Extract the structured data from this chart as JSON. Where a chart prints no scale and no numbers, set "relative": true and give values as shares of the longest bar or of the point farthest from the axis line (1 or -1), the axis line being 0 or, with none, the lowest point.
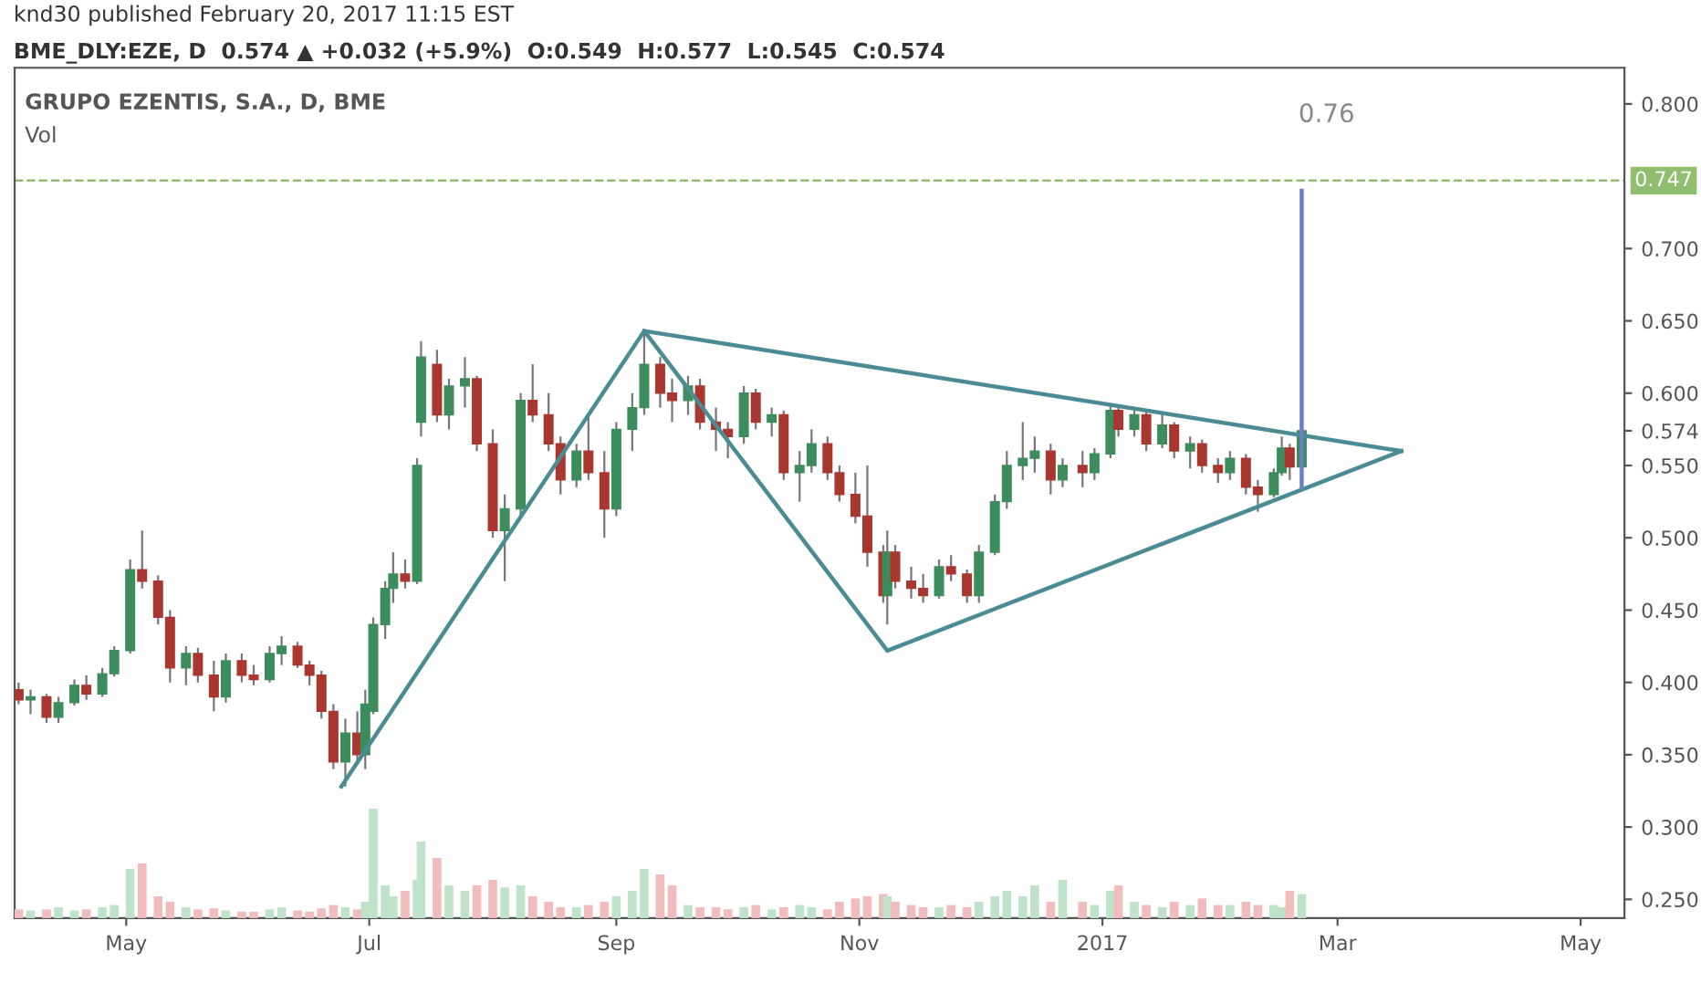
{
  "chart_data": [
    {
      "type": "candlestick",
      "title": "GRUPO EZENTIS, S.A., D, BME",
      "annotations": [
        "knd30 published February 20, 2017 11:15 EST",
        "BME_DLY:EZE, D  0.574 ▲ +0.032 (+5.9%)  O:0.549  H:0.577  L:0.545  C:0.574",
        "0.76"
      ],
      "x": [
        "2016-04-04",
        "2016-04-07",
        "2016-04-11",
        "2016-04-14",
        "2016-04-18",
        "2016-04-21",
        "2016-04-25",
        "2016-04-28",
        "2016-05-02",
        "2016-05-05",
        "2016-05-09",
        "2016-05-12",
        "2016-05-16",
        "2016-05-19",
        "2016-05-23",
        "2016-05-26",
        "2016-05-30",
        "2016-06-02",
        "2016-06-06",
        "2016-06-09",
        "2016-06-13",
        "2016-06-16",
        "2016-06-19",
        "2016-06-22",
        "2016-06-25",
        "2016-06-28",
        "2016-06-30",
        "2016-07-02",
        "2016-07-05",
        "2016-07-07",
        "2016-07-10",
        "2016-07-13",
        "2016-07-14",
        "2016-07-18",
        "2016-07-21",
        "2016-07-25",
        "2016-07-28",
        "2016-08-01",
        "2016-08-04",
        "2016-08-08",
        "2016-08-11",
        "2016-08-15",
        "2016-08-18",
        "2016-08-22",
        "2016-08-25",
        "2016-08-29",
        "2016-09-01",
        "2016-09-05",
        "2016-09-08",
        "2016-09-12",
        "2016-09-15",
        "2016-09-19",
        "2016-09-22",
        "2016-09-26",
        "2016-09-29",
        "2016-10-03",
        "2016-10-06",
        "2016-10-10",
        "2016-10-13",
        "2016-10-17",
        "2016-10-20",
        "2016-10-24",
        "2016-10-27",
        "2016-10-31",
        "2016-11-03",
        "2016-11-07",
        "2016-11-08",
        "2016-11-10",
        "2016-11-14",
        "2016-11-17",
        "2016-11-21",
        "2016-11-24",
        "2016-11-28",
        "2016-12-01",
        "2016-12-05",
        "2016-12-08",
        "2016-12-12",
        "2016-12-15",
        "2016-12-19",
        "2016-12-22",
        "2016-12-27",
        "2016-12-30",
        "2017-01-03",
        "2017-01-05",
        "2017-01-09",
        "2017-01-12",
        "2017-01-16",
        "2017-01-19",
        "2017-01-23",
        "2017-01-26",
        "2017-01-30",
        "2017-02-02",
        "2017-02-06",
        "2017-02-09",
        "2017-02-13",
        "2017-02-15",
        "2017-02-17",
        "2017-02-20"
      ],
      "ohlc": [
        [
          0.395,
          0.4,
          0.385,
          0.388
        ],
        [
          0.388,
          0.395,
          0.378,
          0.39
        ],
        [
          0.39,
          0.392,
          0.372,
          0.376
        ],
        [
          0.376,
          0.39,
          0.372,
          0.386
        ],
        [
          0.386,
          0.402,
          0.384,
          0.398
        ],
        [
          0.398,
          0.405,
          0.388,
          0.392
        ],
        [
          0.392,
          0.41,
          0.39,
          0.406
        ],
        [
          0.406,
          0.425,
          0.404,
          0.422
        ],
        [
          0.422,
          0.485,
          0.42,
          0.478
        ],
        [
          0.478,
          0.505,
          0.465,
          0.47
        ],
        [
          0.47,
          0.474,
          0.44,
          0.445
        ],
        [
          0.445,
          0.45,
          0.4,
          0.41
        ],
        [
          0.41,
          0.425,
          0.398,
          0.42
        ],
        [
          0.42,
          0.424,
          0.4,
          0.405
        ],
        [
          0.405,
          0.415,
          0.38,
          0.39
        ],
        [
          0.39,
          0.42,
          0.386,
          0.415
        ],
        [
          0.415,
          0.42,
          0.4,
          0.405
        ],
        [
          0.405,
          0.412,
          0.398,
          0.402
        ],
        [
          0.402,
          0.425,
          0.4,
          0.42
        ],
        [
          0.42,
          0.432,
          0.412,
          0.425
        ],
        [
          0.425,
          0.428,
          0.41,
          0.412
        ],
        [
          0.412,
          0.415,
          0.398,
          0.405
        ],
        [
          0.405,
          0.408,
          0.375,
          0.38
        ],
        [
          0.38,
          0.385,
          0.34,
          0.345
        ],
        [
          0.345,
          0.375,
          0.328,
          0.365
        ],
        [
          0.365,
          0.38,
          0.345,
          0.35
        ],
        [
          0.35,
          0.395,
          0.34,
          0.385
        ],
        [
          0.38,
          0.445,
          0.378,
          0.44
        ],
        [
          0.44,
          0.47,
          0.43,
          0.465
        ],
        [
          0.465,
          0.49,
          0.455,
          0.475
        ],
        [
          0.475,
          0.485,
          0.465,
          0.47
        ],
        [
          0.47,
          0.555,
          0.468,
          0.55
        ],
        [
          0.58,
          0.636,
          0.57,
          0.625
        ],
        [
          0.62,
          0.63,
          0.58,
          0.585
        ],
        [
          0.585,
          0.61,
          0.575,
          0.605
        ],
        [
          0.605,
          0.625,
          0.59,
          0.61
        ],
        [
          0.61,
          0.612,
          0.56,
          0.565
        ],
        [
          0.565,
          0.575,
          0.5,
          0.505
        ],
        [
          0.505,
          0.53,
          0.47,
          0.52
        ],
        [
          0.52,
          0.6,
          0.515,
          0.595
        ],
        [
          0.595,
          0.62,
          0.58,
          0.585
        ],
        [
          0.585,
          0.6,
          0.56,
          0.565
        ],
        [
          0.565,
          0.57,
          0.53,
          0.54
        ],
        [
          0.54,
          0.565,
          0.535,
          0.56
        ],
        [
          0.56,
          0.585,
          0.54,
          0.545
        ],
        [
          0.545,
          0.56,
          0.5,
          0.52
        ],
        [
          0.52,
          0.58,
          0.515,
          0.575
        ],
        [
          0.575,
          0.6,
          0.56,
          0.59
        ],
        [
          0.59,
          0.643,
          0.585,
          0.62
        ],
        [
          0.62,
          0.625,
          0.59,
          0.6
        ],
        [
          0.6,
          0.61,
          0.58,
          0.595
        ],
        [
          0.595,
          0.612,
          0.585,
          0.605
        ],
        [
          0.605,
          0.61,
          0.575,
          0.58
        ],
        [
          0.58,
          0.59,
          0.56,
          0.575
        ],
        [
          0.575,
          0.58,
          0.555,
          0.57
        ],
        [
          0.57,
          0.605,
          0.565,
          0.6
        ],
        [
          0.6,
          0.603,
          0.575,
          0.58
        ],
        [
          0.58,
          0.59,
          0.57,
          0.585
        ],
        [
          0.585,
          0.588,
          0.54,
          0.545
        ],
        [
          0.545,
          0.56,
          0.525,
          0.55
        ],
        [
          0.55,
          0.575,
          0.545,
          0.565
        ],
        [
          0.565,
          0.57,
          0.54,
          0.545
        ],
        [
          0.545,
          0.55,
          0.525,
          0.53
        ],
        [
          0.53,
          0.545,
          0.51,
          0.515
        ],
        [
          0.515,
          0.55,
          0.48,
          0.49
        ],
        [
          0.49,
          0.495,
          0.455,
          0.46
        ],
        [
          0.46,
          0.505,
          0.44,
          0.49
        ],
        [
          0.49,
          0.495,
          0.465,
          0.47
        ],
        [
          0.47,
          0.48,
          0.458,
          0.465
        ],
        [
          0.465,
          0.475,
          0.455,
          0.46
        ],
        [
          0.46,
          0.485,
          0.458,
          0.48
        ],
        [
          0.48,
          0.488,
          0.47,
          0.475
        ],
        [
          0.475,
          0.478,
          0.455,
          0.46
        ],
        [
          0.46,
          0.495,
          0.455,
          0.49
        ],
        [
          0.49,
          0.53,
          0.488,
          0.525
        ],
        [
          0.525,
          0.56,
          0.52,
          0.55
        ],
        [
          0.55,
          0.58,
          0.54,
          0.555
        ],
        [
          0.555,
          0.57,
          0.545,
          0.56
        ],
        [
          0.56,
          0.565,
          0.53,
          0.54
        ],
        [
          0.54,
          0.555,
          0.535,
          0.55
        ],
        [
          0.55,
          0.56,
          0.535,
          0.545
        ],
        [
          0.545,
          0.562,
          0.54,
          0.558
        ],
        [
          0.558,
          0.592,
          0.555,
          0.588
        ],
        [
          0.588,
          0.592,
          0.57,
          0.575
        ],
        [
          0.575,
          0.59,
          0.57,
          0.585
        ],
        [
          0.585,
          0.588,
          0.56,
          0.565
        ],
        [
          0.565,
          0.585,
          0.562,
          0.578
        ],
        [
          0.578,
          0.58,
          0.555,
          0.56
        ],
        [
          0.56,
          0.57,
          0.548,
          0.565
        ],
        [
          0.565,
          0.568,
          0.545,
          0.55
        ],
        [
          0.55,
          0.555,
          0.538,
          0.545
        ],
        [
          0.545,
          0.56,
          0.54,
          0.555
        ],
        [
          0.555,
          0.558,
          0.53,
          0.535
        ],
        [
          0.535,
          0.54,
          0.518,
          0.53
        ],
        [
          0.53,
          0.548,
          0.528,
          0.545
        ],
        [
          0.545,
          0.57,
          0.543,
          0.562
        ],
        [
          0.562,
          0.565,
          0.54,
          0.549
        ],
        [
          0.549,
          0.577,
          0.545,
          0.574
        ]
      ],
      "colors": [
        "#a9372f",
        "#3d8c5c",
        "#a9372f",
        "#3d8c5c",
        "#3d8c5c",
        "#a9372f",
        "#3d8c5c",
        "#3d8c5c",
        "#3d8c5c",
        "#a9372f",
        "#a9372f",
        "#a9372f",
        "#3d8c5c",
        "#a9372f",
        "#a9372f",
        "#3d8c5c",
        "#a9372f",
        "#a9372f",
        "#3d8c5c",
        "#3d8c5c",
        "#a9372f",
        "#a9372f",
        "#a9372f",
        "#a9372f",
        "#3d8c5c",
        "#a9372f",
        "#3d8c5c",
        "#3d8c5c",
        "#3d8c5c",
        "#3d8c5c",
        "#a9372f",
        "#3d8c5c",
        "#3d8c5c",
        "#a9372f",
        "#3d8c5c",
        "#3d8c5c",
        "#a9372f",
        "#a9372f",
        "#3d8c5c",
        "#3d8c5c",
        "#a9372f",
        "#a9372f",
        "#a9372f",
        "#3d8c5c",
        "#a9372f",
        "#a9372f",
        "#3d8c5c",
        "#3d8c5c",
        "#3d8c5c",
        "#a9372f",
        "#a9372f",
        "#3d8c5c",
        "#a9372f",
        "#a9372f",
        "#a9372f",
        "#3d8c5c",
        "#a9372f",
        "#3d8c5c",
        "#a9372f",
        "#3d8c5c",
        "#3d8c5c",
        "#a9372f",
        "#a9372f",
        "#a9372f",
        "#a9372f",
        "#a9372f",
        "#3d8c5c",
        "#a9372f",
        "#a9372f",
        "#a9372f",
        "#3d8c5c",
        "#a9372f",
        "#a9372f",
        "#3d8c5c",
        "#3d8c5c",
        "#3d8c5c",
        "#3d8c5c",
        "#3d8c5c",
        "#a9372f",
        "#3d8c5c",
        "#a9372f",
        "#3d8c5c",
        "#3d8c5c",
        "#a9372f",
        "#3d8c5c",
        "#a9372f",
        "#3d8c5c",
        "#a9372f",
        "#3d8c5c",
        "#a9372f",
        "#a9372f",
        "#3d8c5c",
        "#a9372f",
        "#a9372f",
        "#3d8c5c",
        "#3d8c5c",
        "#a9372f",
        "#3d8c5c"
      ],
      "series": [
        {
          "type": "line",
          "color": "#4a8b94",
          "x": [
            "2016-06-24",
            "2016-09-08",
            "2016-11-08",
            "2017-03-17"
          ],
          "values": [
            0.328,
            0.643,
            0.422,
            0.56
          ]
        },
        {
          "type": "line",
          "color": "#4a8b94",
          "x": [
            "2016-09-08",
            "2017-03-17"
          ],
          "values": [
            0.643,
            0.56
          ]
        },
        {
          "type": "line",
          "color": "#6b7fc4",
          "x": [
            "2017-02-20",
            "2017-02-20"
          ],
          "values": [
            0.535,
            0.74
          ]
        }
      ],
      "ref_lines": [
        {
          "axis": "y",
          "value": 0.747,
          "label": "0.747",
          "color": "#8fbf6e",
          "line_style": "dashed"
        }
      ],
      "xlim": [
        "2016-04-03",
        "2017-05-12"
      ],
      "xticks": [
        {
          "value": "2016-05-01",
          "label": "May"
        },
        {
          "value": "2016-07-01",
          "label": "Jul"
        },
        {
          "value": "2016-09-01",
          "label": "Sep"
        },
        {
          "value": "2016-11-01",
          "label": "Nov"
        },
        {
          "value": "2017-01-01",
          "label": "2017"
        },
        {
          "value": "2017-03-01",
          "label": "Mar"
        },
        {
          "value": "2017-05-01",
          "label": "May"
        }
      ],
      "ylim": [
        0.237,
        0.825
      ],
      "yticks": [
        {
          "value": 0.25,
          "label": "0.250"
        },
        {
          "value": 0.3,
          "label": "0.300"
        },
        {
          "value": 0.35,
          "label": "0.350"
        },
        {
          "value": 0.4,
          "label": "0.400"
        },
        {
          "value": 0.45,
          "label": "0.450"
        },
        {
          "value": 0.5,
          "label": "0.500"
        },
        {
          "value": 0.55,
          "label": "0.550"
        },
        {
          "value": 0.574,
          "label": "0.574"
        },
        {
          "value": 0.6,
          "label": "0.600"
        },
        {
          "value": 0.65,
          "label": "0.650"
        },
        {
          "value": 0.7,
          "label": "0.700"
        },
        {
          "value": 0.8,
          "label": "0.800"
        }
      ],
      "grid": false,
      "legend": false
    },
    {
      "type": "bar",
      "title": "Vol",
      "relative": true,
      "x": [
        "2016-04-04",
        "2016-04-07",
        "2016-04-11",
        "2016-04-14",
        "2016-04-18",
        "2016-04-21",
        "2016-04-25",
        "2016-04-28",
        "2016-05-02",
        "2016-05-05",
        "2016-05-09",
        "2016-05-12",
        "2016-05-16",
        "2016-05-19",
        "2016-05-23",
        "2016-05-26",
        "2016-05-30",
        "2016-06-02",
        "2016-06-06",
        "2016-06-09",
        "2016-06-13",
        "2016-06-16",
        "2016-06-19",
        "2016-06-22",
        "2016-06-25",
        "2016-06-28",
        "2016-06-30",
        "2016-07-02",
        "2016-07-05",
        "2016-07-07",
        "2016-07-10",
        "2016-07-13",
        "2016-07-14",
        "2016-07-18",
        "2016-07-21",
        "2016-07-25",
        "2016-07-28",
        "2016-08-01",
        "2016-08-04",
        "2016-08-08",
        "2016-08-11",
        "2016-08-15",
        "2016-08-18",
        "2016-08-22",
        "2016-08-25",
        "2016-08-29",
        "2016-09-01",
        "2016-09-05",
        "2016-09-08",
        "2016-09-12",
        "2016-09-15",
        "2016-09-19",
        "2016-09-22",
        "2016-09-26",
        "2016-09-29",
        "2016-10-03",
        "2016-10-06",
        "2016-10-10",
        "2016-10-13",
        "2016-10-17",
        "2016-10-20",
        "2016-10-24",
        "2016-10-27",
        "2016-10-31",
        "2016-11-03",
        "2016-11-07",
        "2016-11-08",
        "2016-11-10",
        "2016-11-14",
        "2016-11-17",
        "2016-11-21",
        "2016-11-24",
        "2016-11-28",
        "2016-12-01",
        "2016-12-05",
        "2016-12-08",
        "2016-12-12",
        "2016-12-15",
        "2016-12-19",
        "2016-12-22",
        "2016-12-27",
        "2016-12-30",
        "2017-01-03",
        "2017-01-05",
        "2017-01-09",
        "2017-01-12",
        "2017-01-16",
        "2017-01-19",
        "2017-01-23",
        "2017-01-26",
        "2017-01-30",
        "2017-02-02",
        "2017-02-06",
        "2017-02-09",
        "2017-02-13",
        "2017-02-15",
        "2017-02-17",
        "2017-02-20"
      ],
      "values": [
        0.08,
        0.07,
        0.08,
        0.1,
        0.07,
        0.08,
        0.1,
        0.12,
        0.45,
        0.5,
        0.2,
        0.15,
        0.1,
        0.08,
        0.09,
        0.07,
        0.06,
        0.06,
        0.08,
        0.1,
        0.07,
        0.06,
        0.09,
        0.12,
        0.1,
        0.08,
        0.15,
        1.0,
        0.3,
        0.2,
        0.25,
        0.35,
        0.7,
        0.55,
        0.3,
        0.25,
        0.3,
        0.35,
        0.28,
        0.3,
        0.2,
        0.15,
        0.1,
        0.1,
        0.12,
        0.15,
        0.2,
        0.25,
        0.45,
        0.4,
        0.3,
        0.12,
        0.1,
        0.1,
        0.08,
        0.1,
        0.12,
        0.08,
        0.1,
        0.12,
        0.1,
        0.08,
        0.15,
        0.18,
        0.2,
        0.22,
        0.2,
        0.15,
        0.12,
        0.1,
        0.1,
        0.12,
        0.1,
        0.15,
        0.2,
        0.25,
        0.2,
        0.3,
        0.15,
        0.35,
        0.15,
        0.12,
        0.25,
        0.3,
        0.15,
        0.12,
        0.1,
        0.15,
        0.12,
        0.18,
        0.12,
        0.12,
        0.15,
        0.12,
        0.12,
        0.1,
        0.25,
        0.22
      ],
      "colors": [
        "#f1bcbc",
        "#bfe3c8",
        "#f1bcbc",
        "#bfe3c8",
        "#bfe3c8",
        "#f1bcbc",
        "#bfe3c8",
        "#bfe3c8",
        "#bfe3c8",
        "#f1bcbc",
        "#f1bcbc",
        "#f1bcbc",
        "#bfe3c8",
        "#f1bcbc",
        "#f1bcbc",
        "#bfe3c8",
        "#f1bcbc",
        "#f1bcbc",
        "#bfe3c8",
        "#bfe3c8",
        "#f1bcbc",
        "#f1bcbc",
        "#f1bcbc",
        "#f1bcbc",
        "#bfe3c8",
        "#f1bcbc",
        "#bfe3c8",
        "#bfe3c8",
        "#bfe3c8",
        "#bfe3c8",
        "#f1bcbc",
        "#bfe3c8",
        "#bfe3c8",
        "#f1bcbc",
        "#bfe3c8",
        "#bfe3c8",
        "#f1bcbc",
        "#f1bcbc",
        "#bfe3c8",
        "#bfe3c8",
        "#f1bcbc",
        "#f1bcbc",
        "#f1bcbc",
        "#bfe3c8",
        "#f1bcbc",
        "#f1bcbc",
        "#bfe3c8",
        "#bfe3c8",
        "#bfe3c8",
        "#f1bcbc",
        "#f1bcbc",
        "#bfe3c8",
        "#f1bcbc",
        "#f1bcbc",
        "#f1bcbc",
        "#bfe3c8",
        "#f1bcbc",
        "#bfe3c8",
        "#f1bcbc",
        "#bfe3c8",
        "#bfe3c8",
        "#f1bcbc",
        "#f1bcbc",
        "#f1bcbc",
        "#f1bcbc",
        "#f1bcbc",
        "#bfe3c8",
        "#f1bcbc",
        "#f1bcbc",
        "#f1bcbc",
        "#bfe3c8",
        "#f1bcbc",
        "#f1bcbc",
        "#bfe3c8",
        "#bfe3c8",
        "#bfe3c8",
        "#bfe3c8",
        "#bfe3c8",
        "#f1bcbc",
        "#bfe3c8",
        "#f1bcbc",
        "#bfe3c8",
        "#bfe3c8",
        "#f1bcbc",
        "#bfe3c8",
        "#f1bcbc",
        "#bfe3c8",
        "#f1bcbc",
        "#bfe3c8",
        "#f1bcbc",
        "#f1bcbc",
        "#bfe3c8",
        "#f1bcbc",
        "#f1bcbc",
        "#bfe3c8",
        "#bfe3c8",
        "#f1bcbc",
        "#bfe3c8"
      ],
      "xlim": [
        "2016-04-03",
        "2017-05-12"
      ]
    }
  ]
}
